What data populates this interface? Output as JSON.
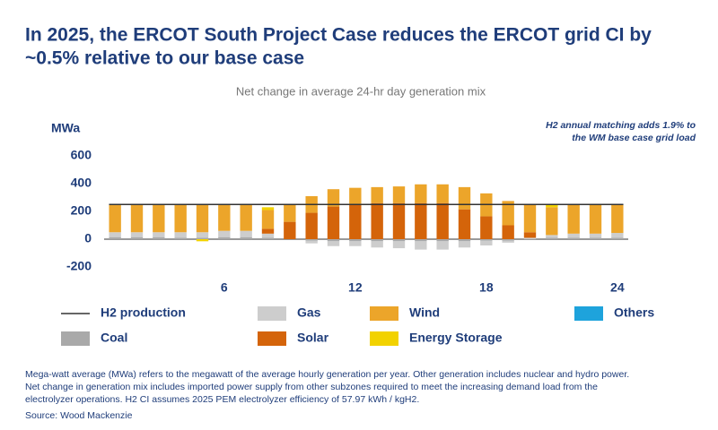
{
  "chart_data": {
    "type": "bar",
    "title_lines": [
      "In 2025, the ERCOT South Project Case reduces the ERCOT grid CI by",
      "~0.5% relative to our base case"
    ],
    "subtitle": "Net change in average 24-hr day generation mix",
    "y_label": "MWa",
    "annotation_lines": [
      "H2 annual matching adds 1.9% to",
      "the WM base case grid load"
    ],
    "x": [
      1,
      2,
      3,
      4,
      5,
      6,
      7,
      8,
      9,
      10,
      11,
      12,
      13,
      14,
      15,
      16,
      17,
      18,
      19,
      20,
      21,
      22,
      23,
      24
    ],
    "xlim": [
      0.5,
      24.5
    ],
    "xticks": [
      6,
      12,
      18,
      24
    ],
    "ylim": [
      -200,
      600
    ],
    "yticks": [
      -200,
      0,
      200,
      400,
      600
    ],
    "stacked": true,
    "grid": false,
    "series": [
      {
        "name": "Coal",
        "color": "#a9a9a9",
        "values": [
          15,
          15,
          15,
          10,
          10,
          15,
          15,
          10,
          0,
          -10,
          -15,
          -15,
          -15,
          -15,
          -15,
          -15,
          -15,
          -10,
          -10,
          0,
          10,
          10,
          10,
          10
        ]
      },
      {
        "name": "Gas",
        "color": "#cdcdcd",
        "values": [
          35,
          35,
          35,
          40,
          40,
          45,
          45,
          30,
          0,
          -20,
          -35,
          -35,
          -45,
          -50,
          -60,
          -60,
          -45,
          -35,
          -15,
          10,
          20,
          30,
          30,
          35
        ]
      },
      {
        "name": "Solar",
        "color": "#d4640a",
        "values": [
          0,
          0,
          0,
          0,
          0,
          0,
          0,
          35,
          125,
          190,
          235,
          255,
          260,
          260,
          260,
          260,
          215,
          165,
          100,
          40,
          0,
          0,
          0,
          0
        ]
      },
      {
        "name": "Wind",
        "color": "#eca52a",
        "values": [
          195,
          195,
          195,
          195,
          195,
          185,
          185,
          135,
          125,
          120,
          125,
          115,
          115,
          120,
          135,
          135,
          160,
          165,
          175,
          200,
          200,
          210,
          210,
          205
        ]
      },
      {
        "name": "Energy Storage",
        "color": "#f2d200",
        "values": [
          0,
          0,
          0,
          0,
          -15,
          0,
          0,
          20,
          0,
          0,
          0,
          0,
          0,
          0,
          0,
          0,
          0,
          0,
          0,
          0,
          20,
          0,
          0,
          0
        ]
      },
      {
        "name": "Others",
        "color": "#1ea3dc",
        "values": [
          0,
          0,
          0,
          0,
          0,
          0,
          0,
          0,
          0,
          0,
          0,
          0,
          0,
          0,
          0,
          0,
          0,
          0,
          0,
          0,
          0,
          0,
          0,
          0
        ]
      },
      {
        "name": "H2 production",
        "type": "line",
        "color": "#333333",
        "values": [
          250,
          250,
          250,
          250,
          250,
          250,
          250,
          250,
          250,
          250,
          250,
          250,
          250,
          250,
          250,
          250,
          250,
          250,
          250,
          250,
          250,
          250,
          250,
          250
        ]
      }
    ],
    "footnote_lines": [
      "Mega-watt average (MWa) refers to the megawatt of the average hourly generation per year. Other generation includes nuclear and hydro power.",
      "Net change in generation mix includes imported power supply from other subzones required to meet the increasing demand load from the",
      "electrolyzer operations. H2 CI assumes 2025 PEM electrolyzer efficiency of 57.97 kWh / kgH2."
    ],
    "source": "Source: Wood Mackenzie"
  }
}
